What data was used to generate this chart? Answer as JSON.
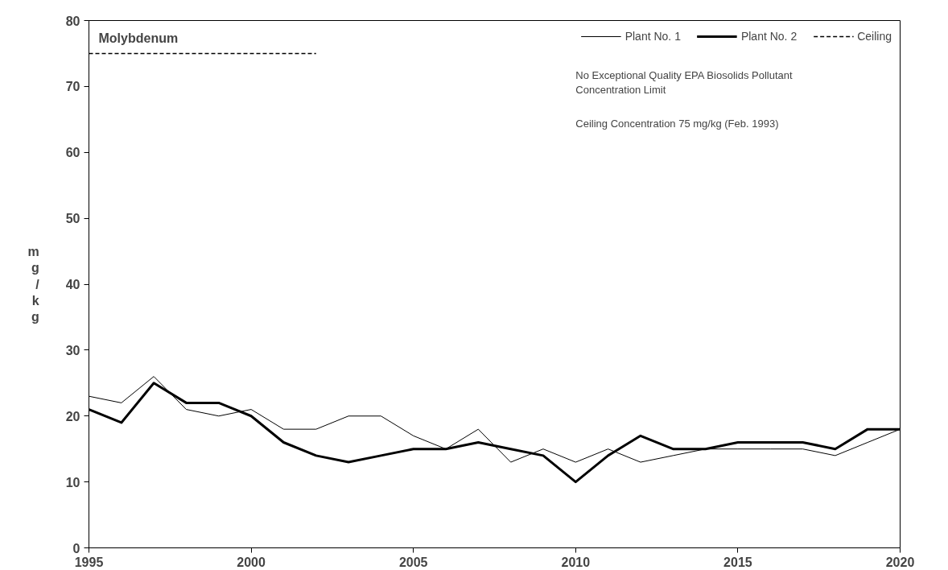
{
  "chart_data": {
    "type": "line",
    "title": "Molybdenum",
    "ylabel": "mg/kg",
    "x": [
      1995,
      1996,
      1997,
      1998,
      1999,
      2000,
      2001,
      2002,
      2003,
      2004,
      2005,
      2006,
      2007,
      2008,
      2009,
      2010,
      2011,
      2012,
      2013,
      2014,
      2015,
      2016,
      2017,
      2018,
      2019,
      2020
    ],
    "series": [
      {
        "name": "Plant No. 1",
        "color": "#000000",
        "values": [
          23,
          22,
          26,
          21,
          20,
          21,
          18,
          18,
          20,
          20,
          17,
          15,
          18,
          13,
          15,
          13,
          15,
          13,
          14,
          15,
          15,
          15,
          15,
          14,
          16,
          18
        ]
      },
      {
        "name": "Plant No. 2",
        "color": "#000000",
        "values": [
          21,
          19,
          25,
          22,
          22,
          20,
          16,
          14,
          13,
          14,
          15,
          15,
          16,
          15,
          14,
          10,
          14,
          17,
          15,
          15,
          16,
          16,
          16,
          15,
          18,
          18
        ]
      },
      {
        "name": "Ceiling",
        "color": "#000000",
        "line_style": "dashed",
        "x": [
          1995,
          2002
        ],
        "values": [
          75,
          75
        ]
      }
    ],
    "annotations": [
      "No Exceptional Quality EPA Biosolids Pollutant\nConcentration  Limit",
      "Ceiling Concentration  75 mg/kg (Feb. 1993)"
    ],
    "xlim": [
      1995,
      2020
    ],
    "xticks": [
      1995,
      2000,
      2005,
      2010,
      2015,
      2020
    ],
    "ylim": [
      0,
      80
    ],
    "yticks": [
      0,
      10,
      20,
      30,
      40,
      50,
      60,
      70,
      80
    ],
    "grid": false,
    "legend": "top right",
    "marker": "none",
    "line_style": "solid"
  }
}
